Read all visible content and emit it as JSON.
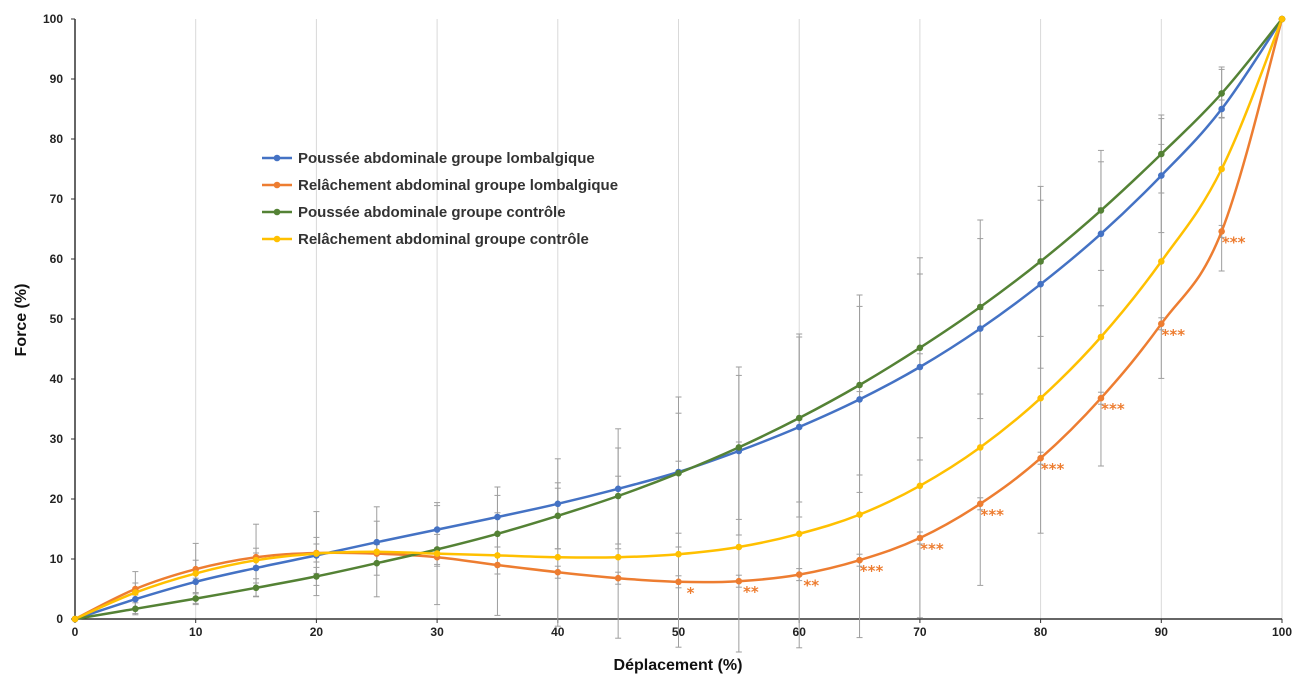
{
  "chart_data": {
    "type": "line",
    "xlabel": "Déplacement (%)",
    "ylabel": "Force (%)",
    "xlim": [
      0,
      100
    ],
    "ylim": [
      0,
      100
    ],
    "xticks": [
      0,
      10,
      20,
      30,
      40,
      50,
      60,
      70,
      80,
      90,
      100
    ],
    "yticks": [
      0,
      10,
      20,
      30,
      40,
      50,
      60,
      70,
      80,
      90,
      100
    ],
    "grid": "vertical",
    "legend_position": "upper-left",
    "x": [
      0,
      5,
      10,
      15,
      20,
      25,
      30,
      35,
      40,
      45,
      50,
      55,
      60,
      65,
      70,
      75,
      80,
      85,
      90,
      95,
      100
    ],
    "series": [
      {
        "name": "Poussée abdominale groupe lombalgique",
        "color": "#4472C4",
        "values": [
          0,
          3.3,
          6.2,
          8.5,
          10.6,
          12.8,
          14.9,
          17.0,
          19.2,
          21.7,
          24.5,
          28.0,
          32.0,
          36.6,
          42.0,
          48.4,
          55.8,
          64.2,
          73.9,
          85.0,
          100
        ],
        "error": [
          0,
          1.5,
          2,
          2.5,
          3,
          3.5,
          4,
          5,
          7.5,
          10,
          12.5,
          14,
          15,
          15.5,
          15.5,
          15,
          14,
          12,
          9.5,
          1.5,
          0
        ]
      },
      {
        "name": "Relâchement abdominal groupe lombalgique",
        "color": "#ED7D31",
        "values": [
          0,
          5.0,
          8.3,
          10.3,
          11.0,
          10.9,
          10.3,
          9.0,
          7.8,
          6.8,
          6.2,
          6.3,
          7.4,
          9.8,
          13.5,
          19.2,
          26.8,
          36.8,
          49.2,
          64.6,
          100
        ],
        "error": [
          0,
          1,
          1.5,
          1.5,
          1.5,
          1.5,
          1.5,
          1.5,
          1,
          1,
          1,
          1,
          1,
          1,
          1,
          1,
          1,
          1,
          1,
          1,
          0
        ]
      },
      {
        "name": "Poussée abdominale groupe contrôle",
        "color": "#548235",
        "values": [
          0,
          1.7,
          3.4,
          5.2,
          7.1,
          9.3,
          11.6,
          14.2,
          17.2,
          20.5,
          24.3,
          28.6,
          33.5,
          39.0,
          45.2,
          52.0,
          59.6,
          68.1,
          77.5,
          87.6,
          100
        ],
        "error": [
          0,
          1,
          1,
          1.5,
          1.5,
          2,
          2.5,
          3.5,
          5.5,
          8,
          10,
          12,
          14,
          15,
          15,
          14.5,
          12.5,
          10,
          6.5,
          4,
          0
        ]
      },
      {
        "name": "Relâchement abdominal groupe contrôle",
        "color": "#FFC000",
        "values": [
          0,
          4.4,
          7.6,
          9.8,
          10.9,
          11.2,
          10.9,
          10.6,
          10.3,
          10.3,
          10.8,
          12.0,
          14.2,
          17.4,
          22.2,
          28.6,
          36.8,
          47.0,
          59.6,
          75.0,
          100
        ],
        "error": [
          0,
          3.5,
          5,
          6,
          7,
          7.5,
          8.5,
          10,
          11.5,
          13.5,
          15.5,
          17.5,
          19,
          20.5,
          22,
          23,
          22.5,
          21.5,
          19.5,
          17,
          0
        ]
      }
    ],
    "annotations": [
      {
        "x": 50,
        "y": 6.2,
        "text": "*"
      },
      {
        "x": 55,
        "y": 6.3,
        "text": "**"
      },
      {
        "x": 60,
        "y": 7.4,
        "text": "**"
      },
      {
        "x": 65,
        "y": 9.8,
        "text": "***"
      },
      {
        "x": 70,
        "y": 13.5,
        "text": "***"
      },
      {
        "x": 75,
        "y": 19.2,
        "text": "***"
      },
      {
        "x": 80,
        "y": 26.8,
        "text": "***"
      },
      {
        "x": 85,
        "y": 36.8,
        "text": "***"
      },
      {
        "x": 90,
        "y": 49.2,
        "text": "***"
      },
      {
        "x": 95,
        "y": 64.6,
        "text": "***"
      }
    ],
    "annotation_color": "#ED7D31",
    "errorbar_color": "#9E9E9E",
    "grid_color": "#D9D9D9"
  }
}
